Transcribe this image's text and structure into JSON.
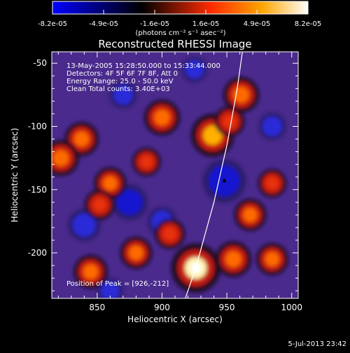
{
  "colorbar": {
    "tick_labels": [
      "-8.2e-05",
      "-4.9e-05",
      "-1.6e-05",
      "1.6e-05",
      "4.9e-05",
      "8.2e-05"
    ],
    "units": "(photons cm⁻² s⁻¹ asec⁻²)",
    "range": [
      -8.2e-05,
      8.2e-05
    ],
    "stops": [
      "#0000ff",
      "#000000",
      "#ff2b00",
      "#ffa500",
      "#ffffff"
    ]
  },
  "chart_data": {
    "type": "heatmap",
    "title": "Reconstructed RHESSI Image",
    "xlabel": "Heliocentric X (arcsec)",
    "ylabel": "Heliocentric Y (arcsec)",
    "xlim": [
      815,
      1005
    ],
    "ylim": [
      -236,
      -41
    ],
    "xticks": [
      850,
      900,
      950,
      1000
    ],
    "yticks": [
      -50,
      -100,
      -150,
      -200
    ],
    "annotations": [
      "13-May-2005 15:28:50.000 to 15:33:44.000",
      "Detectors: 4F 5F 6F 7F 8F, Att 0",
      "Energy Range: 25.0 - 50.0 keV",
      "Clean     Total counts: 3.40E+03"
    ],
    "peak_label": "Position of Peak = [926,-212]",
    "peak": [
      926,
      -212
    ],
    "center_marker": [
      948,
      -143
    ],
    "limb_line": [
      [
        918,
        -236
      ],
      [
        926,
        -212
      ],
      [
        940,
        -160
      ],
      [
        950,
        -115
      ],
      [
        958,
        -70
      ],
      [
        962,
        -41
      ]
    ],
    "hot_spots": [
      {
        "x": 926,
        "y": -212,
        "value": 8.2e-05
      },
      {
        "x": 939,
        "y": -107,
        "value": 6.5e-05
      },
      {
        "x": 900,
        "y": -93,
        "value": 4.5e-05
      },
      {
        "x": 961,
        "y": -75,
        "value": 4.5e-05
      },
      {
        "x": 952,
        "y": -96,
        "value": 3e-05
      },
      {
        "x": 838,
        "y": -110,
        "value": 4e-05
      },
      {
        "x": 822,
        "y": -125,
        "value": 4.5e-05
      },
      {
        "x": 860,
        "y": -145,
        "value": 3.5e-05
      },
      {
        "x": 852,
        "y": -162,
        "value": 3e-05
      },
      {
        "x": 968,
        "y": -170,
        "value": 3.5e-05
      },
      {
        "x": 985,
        "y": -145,
        "value": 2.5e-05
      },
      {
        "x": 955,
        "y": -205,
        "value": 4.5e-05
      },
      {
        "x": 985,
        "y": -205,
        "value": 3.5e-05
      },
      {
        "x": 906,
        "y": -185,
        "value": 3e-05
      },
      {
        "x": 880,
        "y": -200,
        "value": 3.5e-05
      },
      {
        "x": 845,
        "y": -215,
        "value": 4e-05
      },
      {
        "x": 888,
        "y": -128,
        "value": 2.5e-05
      }
    ],
    "cold_spots": [
      {
        "x": 948,
        "y": -143,
        "value": -8.2e-05
      },
      {
        "x": 875,
        "y": -160,
        "value": -6e-05
      },
      {
        "x": 840,
        "y": -178,
        "value": -5e-05
      },
      {
        "x": 900,
        "y": -175,
        "value": -4e-05
      },
      {
        "x": 870,
        "y": -75,
        "value": -3.5e-05
      },
      {
        "x": 925,
        "y": -55,
        "value": -3e-05
      },
      {
        "x": 985,
        "y": -100,
        "value": -3.5e-05
      },
      {
        "x": 860,
        "y": -230,
        "value": -3e-05
      }
    ]
  },
  "timestamp": "5-Jul-2013 23:42"
}
